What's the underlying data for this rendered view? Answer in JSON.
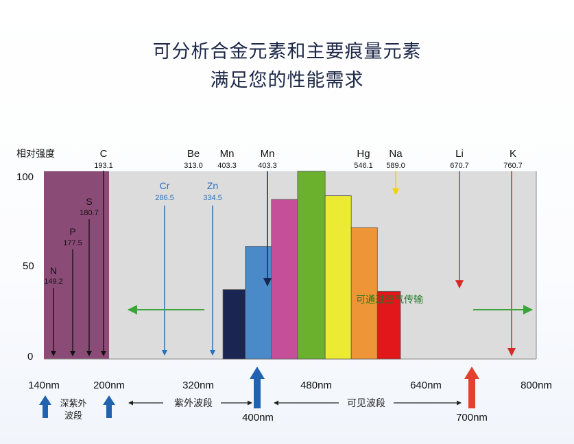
{
  "headline": {
    "line1": "可分析合金元素和主要痕量元素",
    "line2": "满足您的性能需求"
  },
  "chart_data": {
    "type": "bar",
    "ylabel": "相对强度",
    "yticks": [
      "100",
      "50",
      "0"
    ],
    "ylim": [
      0,
      100
    ],
    "xticks": [
      "140nm",
      "200nm",
      "320nm",
      "480nm",
      "640nm",
      "800nm"
    ],
    "bars": [
      {
        "color": "#1b2552",
        "value": 37,
        "range_nm": [
          380,
          410
        ]
      },
      {
        "color": "#4a8ac8",
        "value": 60,
        "range_nm": [
          410,
          445
        ]
      },
      {
        "color": "#c64f99",
        "value": 85,
        "range_nm": [
          445,
          480
        ]
      },
      {
        "color": "#6bb12e",
        "value": 100,
        "range_nm": [
          480,
          517
        ]
      },
      {
        "color": "#ecea33",
        "value": 87,
        "range_nm": [
          517,
          552
        ]
      },
      {
        "color": "#ee9637",
        "value": 70,
        "range_nm": [
          552,
          587
        ]
      },
      {
        "color": "#e2171b",
        "value": 36,
        "range_nm": [
          587,
          618
        ]
      }
    ],
    "elements": [
      {
        "symbol": "N",
        "wavelength": "149.2"
      },
      {
        "symbol": "P",
        "wavelength": "177.5"
      },
      {
        "symbol": "S",
        "wavelength": "180.7"
      },
      {
        "symbol": "C",
        "wavelength": "193.1"
      },
      {
        "symbol": "Cr",
        "wavelength": "286.5"
      },
      {
        "symbol": "Zn",
        "wavelength": "334.5"
      },
      {
        "symbol": "Be",
        "wavelength": "313.0"
      },
      {
        "symbol": "Mn",
        "wavelength": "403.3"
      },
      {
        "symbol": "Mn",
        "wavelength": "403.3"
      },
      {
        "symbol": "Hg",
        "wavelength": "546.1"
      },
      {
        "symbol": "Na",
        "wavelength": "589.0"
      },
      {
        "symbol": "Li",
        "wavelength": "670.7"
      },
      {
        "symbol": "K",
        "wavelength": "760.7"
      }
    ],
    "annotations": {
      "air_transmission": "可通过空气传输",
      "deep_uv": [
        "深紫外",
        "波段"
      ],
      "uv_band": "紫外波段",
      "visible_band": "可见波段",
      "marker_400": "400nm",
      "marker_700": "700nm"
    },
    "colors": {
      "deep_uv_region": "#8a4b77",
      "plot_background": "#dcdcdc",
      "uv_arrow": "#2d6fb8",
      "air_arrow": "#3aa43a",
      "mn_arrow": "#1b2552",
      "na_arrow": "#f0d400",
      "li_k_arrow": "#d42a2a",
      "marker_blue": "#2163ae",
      "marker_red": "#e2412f"
    }
  }
}
